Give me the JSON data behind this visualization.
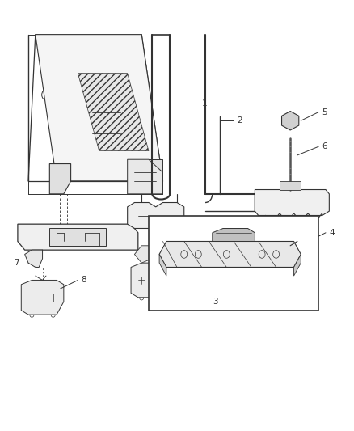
{
  "bg_color": "#ffffff",
  "line_color": "#333333",
  "fig_width": 4.38,
  "fig_height": 5.33,
  "dpi": 100,
  "label_fontsize": 7.5
}
